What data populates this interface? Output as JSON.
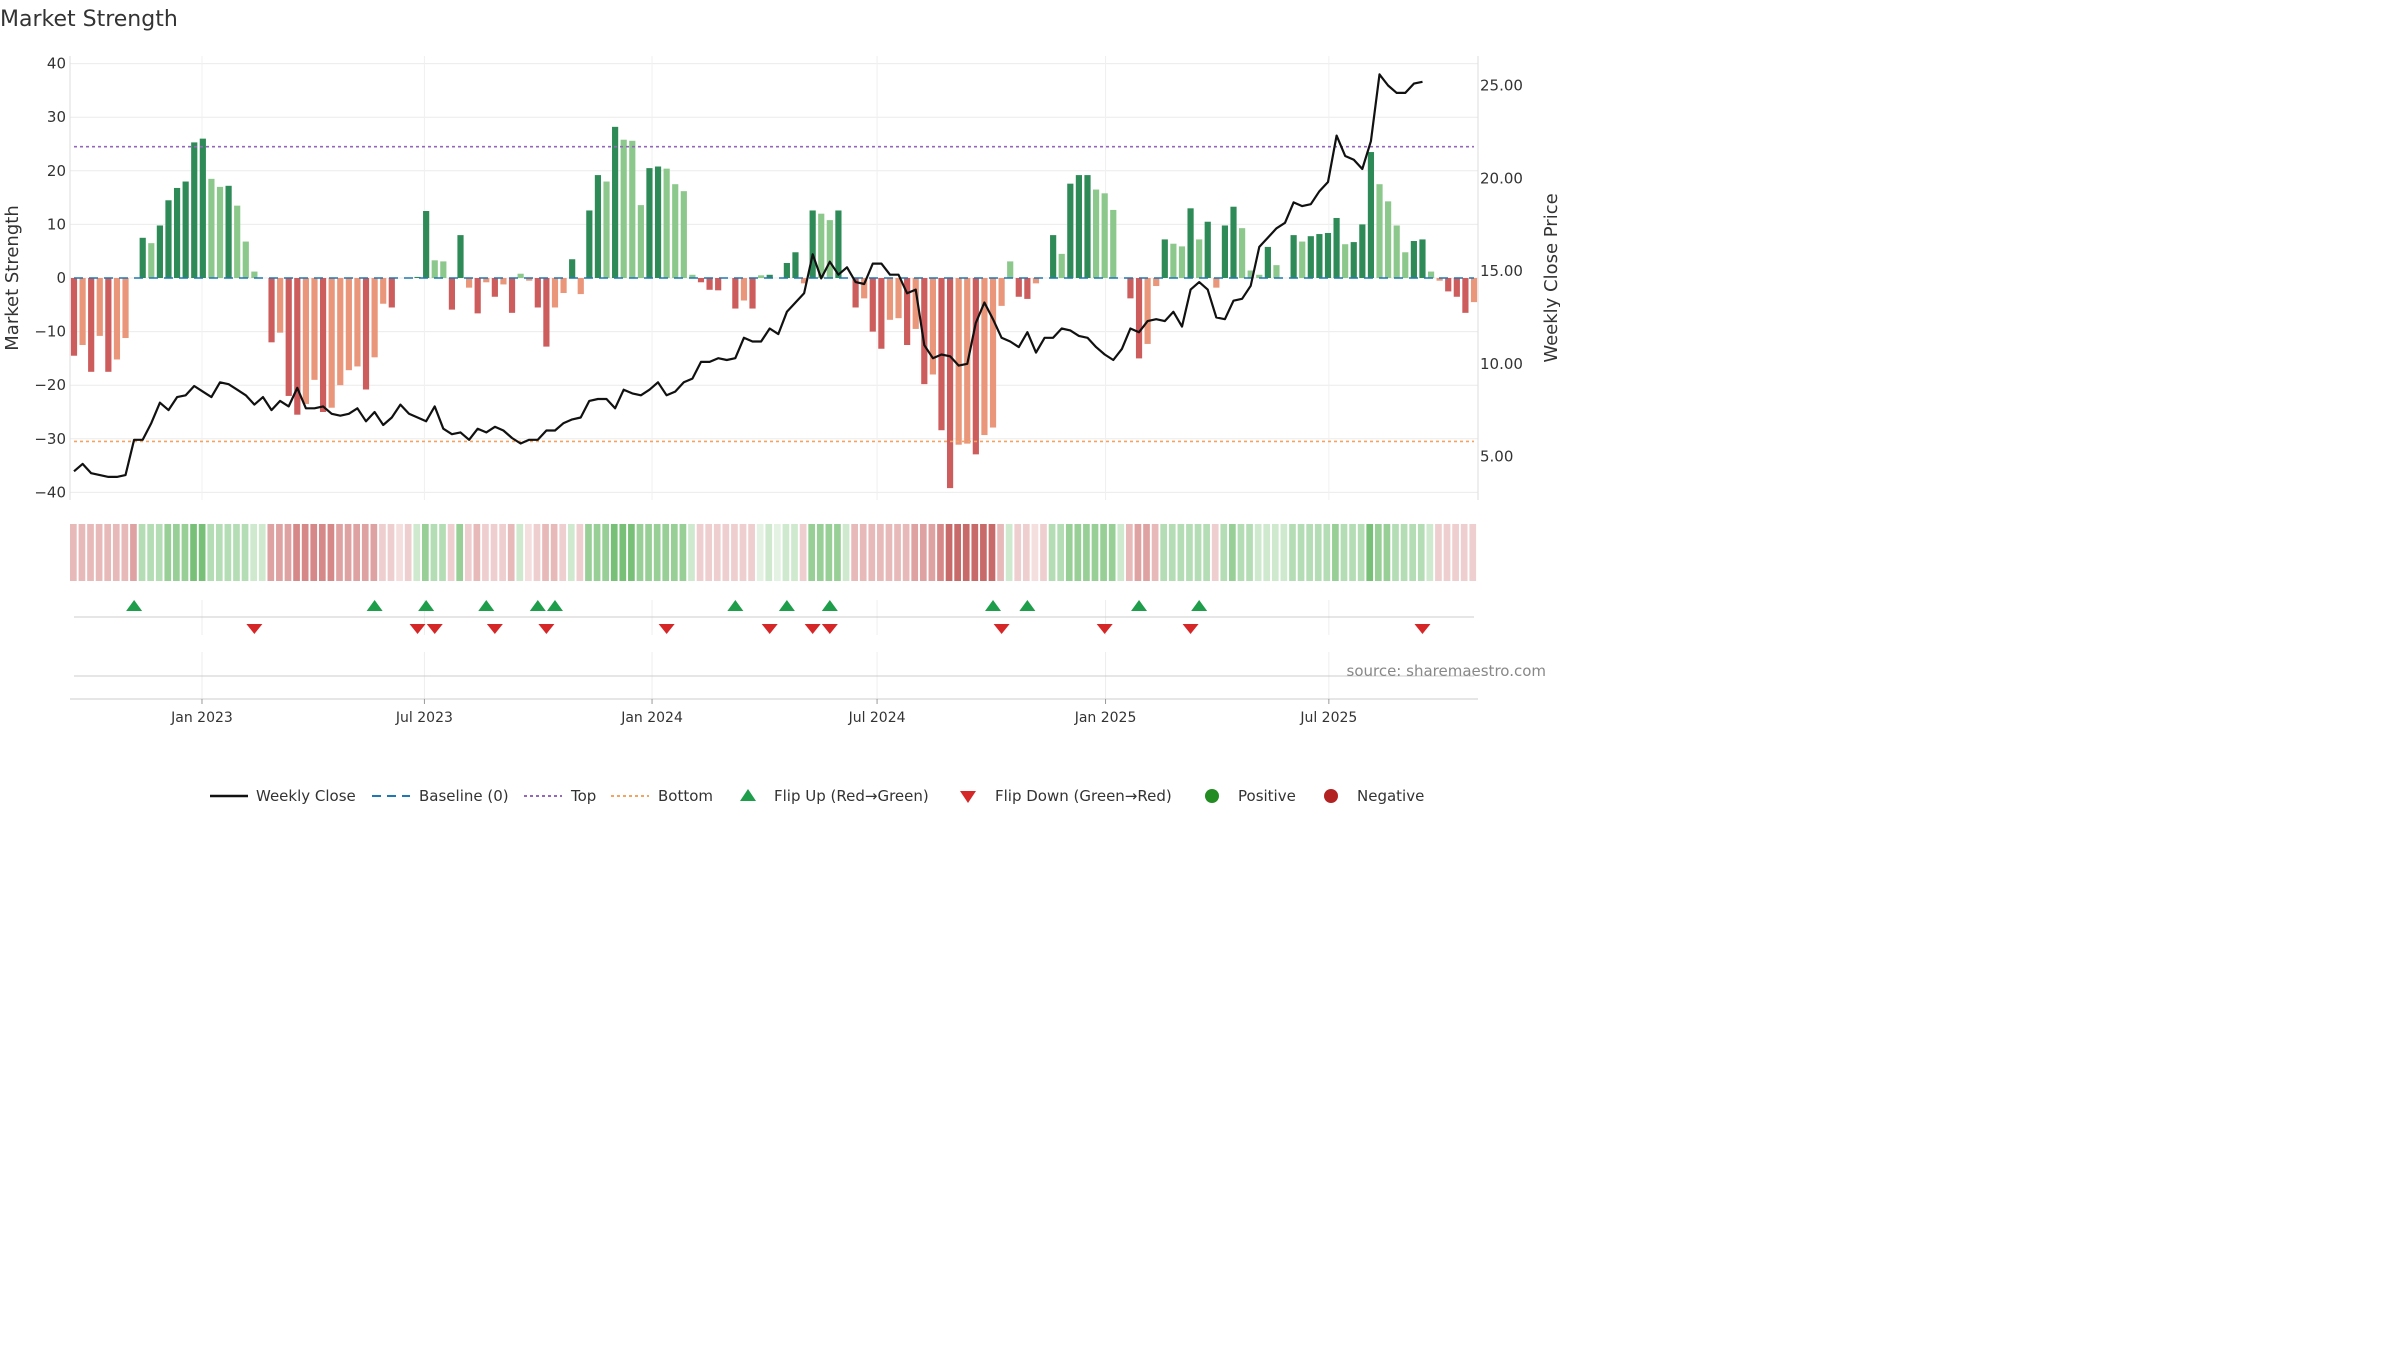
{
  "chart_data": {
    "type": "bar",
    "title": "Market Strength",
    "ylabel_left": "Market Strength",
    "ylabel_right": "Weekly Close Price",
    "ylim_left": [
      -42,
      42
    ],
    "yticks_left": [
      "40",
      "30",
      "20",
      "10",
      "0",
      "−10",
      "−20",
      "−30",
      "−40"
    ],
    "yticks_left_values": [
      40,
      30,
      20,
      10,
      0,
      -10,
      -20,
      -30,
      -40
    ],
    "ylim_right": [
      2.4,
      26.6
    ],
    "yticks_right": [
      "25.00",
      "20.00",
      "15.00",
      "10.00",
      "5.00"
    ],
    "yticks_right_values": [
      25,
      20,
      15,
      10,
      5
    ],
    "xticks": [
      "Jan 2023",
      "Jul 2023",
      "Jan 2024",
      "Jul 2024",
      "Jan 2025",
      "Jul 2025"
    ],
    "xtick_weeks": [
      14.9,
      40.8,
      67.3,
      93.5,
      120.1,
      146.1
    ],
    "top_line": 24.5,
    "bottom_line": -30.5,
    "grid": true,
    "legend_position": "bottom",
    "strength": [
      -14.5,
      -12.5,
      -17.5,
      -10.8,
      -17.5,
      -15.2,
      -11.2,
      0,
      7.5,
      6.5,
      9.8,
      14.5,
      16.8,
      18,
      25.3,
      26,
      18.5,
      17,
      17.2,
      13.5,
      6.8,
      1.2,
      0,
      -12,
      -10.2,
      -22,
      -25.5,
      -23.5,
      -19,
      -25,
      -24.2,
      -20,
      -17.2,
      -16.5,
      -20.8,
      -14.8,
      -4.8,
      -5.5,
      0,
      0,
      0.2,
      12.5,
      3.3,
      3.1,
      -5.9,
      8,
      -1.8,
      -6.6,
      -0.8,
      -3.5,
      -1.2,
      -6.5,
      0.8,
      -0.5,
      -5.5,
      -12.8,
      -5.5,
      -2.8,
      3.5,
      -3,
      12.6,
      19.2,
      18,
      28.2,
      25.8,
      25.6,
      13.6,
      20.5,
      20.8,
      20.4,
      17.5,
      16.2,
      0.6,
      -0.8,
      -2.2,
      -2.3,
      0,
      -5.7,
      -4.2,
      -5.7,
      0.5,
      0.6,
      0,
      2.8,
      4.8,
      -1,
      12.6,
      12,
      10.8,
      12.6,
      0,
      -5.5,
      -3.8,
      -10,
      -13.2,
      -7.8,
      -7.5,
      -12.5,
      -9.5,
      -19.8,
      -18,
      -28.4,
      -39.2,
      -31.1,
      -30.9,
      -32.9,
      -29.3,
      -27.9,
      -5.2,
      3.1,
      -3.5,
      -3.9,
      -1,
      0,
      8,
      4.5,
      17.6,
      19.2,
      19.2,
      16.5,
      15.8,
      12.7,
      0,
      -3.8,
      -15,
      -12.3,
      -1.5,
      7.2,
      6.4,
      5.9,
      13,
      7.2,
      10.5,
      -1.8,
      9.8,
      13.3,
      9.3,
      1.4,
      0.6,
      5.8,
      2.4,
      0,
      8,
      6.8,
      7.8,
      8.2,
      8.4,
      11.2,
      6.3,
      6.7,
      10,
      23.5,
      17.5,
      14.3,
      9.8,
      4.8,
      6.9,
      7.2,
      1.2,
      -0.5,
      -2.5,
      -3.5,
      -6.5,
      -4.5
    ],
    "close": [
      4.2,
      4.6,
      4.1,
      4.0,
      3.9,
      3.9,
      4.0,
      5.9,
      5.9,
      6.8,
      7.9,
      7.5,
      8.2,
      8.3,
      8.8,
      8.5,
      8.2,
      9.0,
      8.9,
      8.6,
      8.3,
      7.8,
      8.2,
      7.5,
      8.0,
      7.7,
      8.7,
      7.6,
      7.6,
      7.7,
      7.3,
      7.2,
      7.3,
      7.6,
      6.9,
      7.4,
      6.7,
      7.1,
      7.8,
      7.3,
      7.1,
      6.9,
      7.7,
      6.5,
      6.2,
      6.3,
      5.9,
      6.5,
      6.3,
      6.6,
      6.4,
      6.0,
      5.7,
      5.9,
      5.9,
      6.4,
      6.4,
      6.8,
      7.0,
      7.1,
      8.0,
      8.1,
      8.1,
      7.6,
      8.6,
      8.4,
      8.3,
      8.6,
      9.0,
      8.3,
      8.5,
      9.0,
      9.2,
      10.1,
      10.1,
      10.3,
      10.2,
      10.3,
      11.4,
      11.2,
      11.2,
      11.9,
      11.6,
      12.8,
      13.3,
      13.8,
      15.9,
      14.6,
      15.5,
      14.8,
      15.2,
      14.4,
      14.3,
      15.4,
      15.4,
      14.8,
      14.8,
      13.8,
      14.0,
      11.0,
      10.3,
      10.5,
      10.4,
      9.9,
      10.0,
      12.2,
      13.3,
      12.4,
      11.4,
      11.2,
      10.9,
      11.7,
      10.6,
      11.4,
      11.4,
      11.9,
      11.8,
      11.5,
      11.4,
      10.9,
      10.5,
      10.2,
      10.8,
      11.9,
      11.7,
      12.3,
      12.4,
      12.3,
      12.8,
      12.0,
      14.0,
      14.4,
      14.0,
      12.5,
      12.4,
      13.4,
      13.5,
      14.2,
      16.3,
      16.8,
      17.3,
      17.6,
      18.7,
      18.5,
      18.6,
      19.3,
      19.8,
      22.3,
      21.2,
      21.0,
      20.5,
      22.0,
      25.6,
      25.0,
      24.6,
      24.6,
      25.1,
      25.2
    ],
    "momentum_strip_shade": [
      2,
      2,
      2,
      2,
      2,
      2,
      2,
      3,
      2,
      2,
      2,
      3,
      3,
      3,
      4,
      4,
      2,
      2,
      2,
      2,
      2,
      1,
      1,
      3,
      3,
      3,
      4,
      4,
      4,
      4,
      4,
      3,
      3,
      3,
      3,
      3,
      1,
      1,
      0,
      1,
      1,
      3,
      2,
      2,
      1,
      3,
      1,
      2,
      1,
      1,
      1,
      2,
      1,
      0,
      1,
      2,
      2,
      1,
      1,
      1,
      3,
      3,
      3,
      4,
      4,
      4,
      3,
      3,
      3,
      3,
      3,
      3,
      1,
      1,
      1,
      1,
      1,
      1,
      1,
      1,
      0,
      1,
      0,
      1,
      1,
      1,
      3,
      3,
      3,
      3,
      1,
      2,
      2,
      2,
      2,
      2,
      2,
      2,
      3,
      3,
      3,
      4,
      5,
      5,
      5,
      5,
      5,
      5,
      2,
      1,
      1,
      1,
      0,
      1,
      2,
      2,
      3,
      3,
      3,
      3,
      3,
      3,
      1,
      2,
      3,
      3,
      2,
      2,
      2,
      2,
      2,
      2,
      2,
      1,
      2,
      3,
      2,
      2,
      1,
      1,
      1,
      1,
      2,
      2,
      2,
      2,
      2,
      3,
      2,
      2,
      2,
      4,
      3,
      3,
      2,
      2,
      2,
      2,
      1,
      1,
      1,
      1,
      1,
      1
    ],
    "flip_up_weeks": [
      7,
      35,
      41,
      48,
      54,
      56,
      77,
      83,
      88,
      107,
      111,
      124,
      131
    ],
    "flip_down_weeks": [
      21,
      40,
      42,
      49,
      55,
      69,
      81,
      86,
      88,
      108,
      120,
      130,
      157
    ],
    "legend": [
      "Weekly Close",
      "Baseline (0)",
      "Top",
      "Bottom",
      "Flip Up (Red→Green)",
      "Flip Down (Green→Red)",
      "Positive",
      "Negative"
    ],
    "source": "source: sharemaestro.com",
    "colors": {
      "pos_dark": "#2e8b57",
      "pos_light": "#8cc88c",
      "neg_dark": "#cd5c5c",
      "neg_light": "#e9967a",
      "close_line": "#111111",
      "baseline": "#1f77b4",
      "top": "#9467bd",
      "bottom": "#f4a460",
      "flip_up": "#1e9e4a",
      "flip_down": "#d62728",
      "positive_dot": "#228b22",
      "negative_dot": "#b22222"
    }
  }
}
